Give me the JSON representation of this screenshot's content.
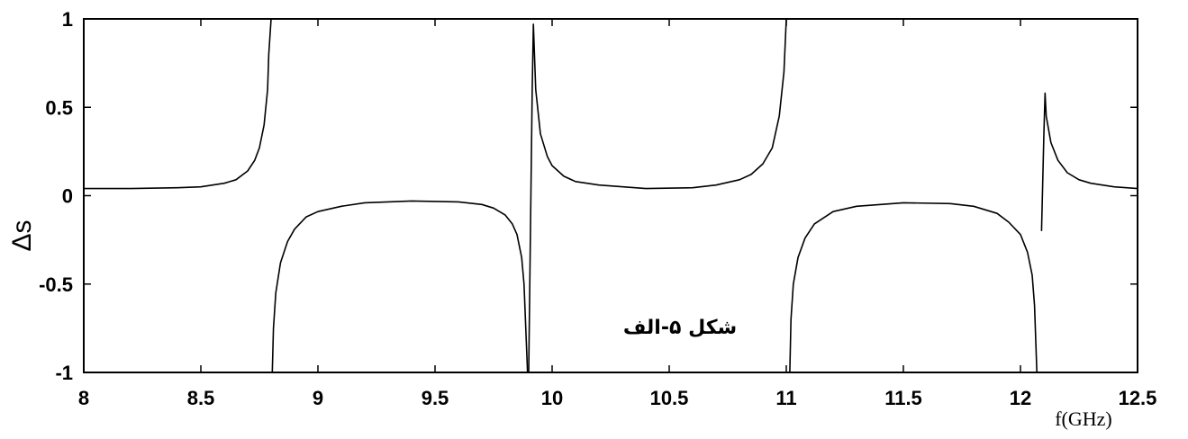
{
  "chart_data": {
    "type": "line",
    "xlabel": "f(GHz)",
    "ylabel": "Δs",
    "annotation": "شکل ۵-الف",
    "xlim": [
      8,
      12.5
    ],
    "ylim": [
      -1,
      1
    ],
    "xticks": [
      "8",
      "8.5",
      "9",
      "9.5",
      "10",
      "10.5",
      "11",
      "11.5",
      "12",
      "12.5"
    ],
    "yticks": [
      "1",
      "0.5",
      "0",
      "-0.5",
      "-1"
    ],
    "grid": false,
    "line_color": "#000000",
    "series": [
      {
        "segments": [
          {
            "x": [
              8.0,
              8.2,
              8.4,
              8.5,
              8.6,
              8.65,
              8.7,
              8.73,
              8.75,
              8.77,
              8.785,
              8.79,
              8.8
            ],
            "y": [
              0.04,
              0.04,
              0.045,
              0.05,
              0.07,
              0.09,
              0.14,
              0.2,
              0.27,
              0.4,
              0.6,
              0.8,
              1.0
            ]
          },
          {
            "x": [
              8.805,
              8.81,
              8.82,
              8.84,
              8.87,
              8.9,
              8.95,
              9.0,
              9.1,
              9.2,
              9.4,
              9.6,
              9.7,
              9.75,
              9.8,
              9.83,
              9.85,
              9.87,
              9.88,
              9.895
            ],
            "y": [
              -1.0,
              -0.75,
              -0.55,
              -0.38,
              -0.26,
              -0.19,
              -0.12,
              -0.09,
              -0.06,
              -0.04,
              -0.03,
              -0.035,
              -0.05,
              -0.07,
              -0.11,
              -0.16,
              -0.22,
              -0.35,
              -0.5,
              -1.0
            ]
          },
          {
            "x": [
              9.9,
              9.915,
              9.92,
              9.93,
              9.95,
              9.98,
              10.0,
              10.05,
              10.1,
              10.2,
              10.4,
              10.6,
              10.7,
              10.8,
              10.85,
              10.9,
              10.94,
              10.97,
              10.99,
              11.0
            ],
            "y": [
              -1.0,
              0.6,
              0.97,
              0.6,
              0.35,
              0.22,
              0.17,
              0.11,
              0.08,
              0.06,
              0.04,
              0.045,
              0.06,
              0.09,
              0.12,
              0.18,
              0.27,
              0.45,
              0.7,
              1.0
            ]
          },
          {
            "x": [
              11.015,
              11.02,
              11.03,
              11.05,
              11.08,
              11.12,
              11.2,
              11.3,
              11.5,
              11.7,
              11.8,
              11.9,
              11.95,
              12.0,
              12.03,
              12.05,
              12.06,
              12.07
            ],
            "y": [
              -1.0,
              -0.7,
              -0.5,
              -0.35,
              -0.24,
              -0.16,
              -0.09,
              -0.06,
              -0.04,
              -0.045,
              -0.06,
              -0.1,
              -0.15,
              -0.22,
              -0.32,
              -0.45,
              -0.62,
              -1.0
            ]
          },
          {
            "x": [
              12.09,
              12.1,
              12.105,
              12.11,
              12.13,
              12.16,
              12.2,
              12.25,
              12.3,
              12.4,
              12.5
            ],
            "y": [
              -0.2,
              0.35,
              0.58,
              0.45,
              0.3,
              0.2,
              0.13,
              0.09,
              0.07,
              0.05,
              0.04
            ]
          }
        ]
      }
    ]
  }
}
